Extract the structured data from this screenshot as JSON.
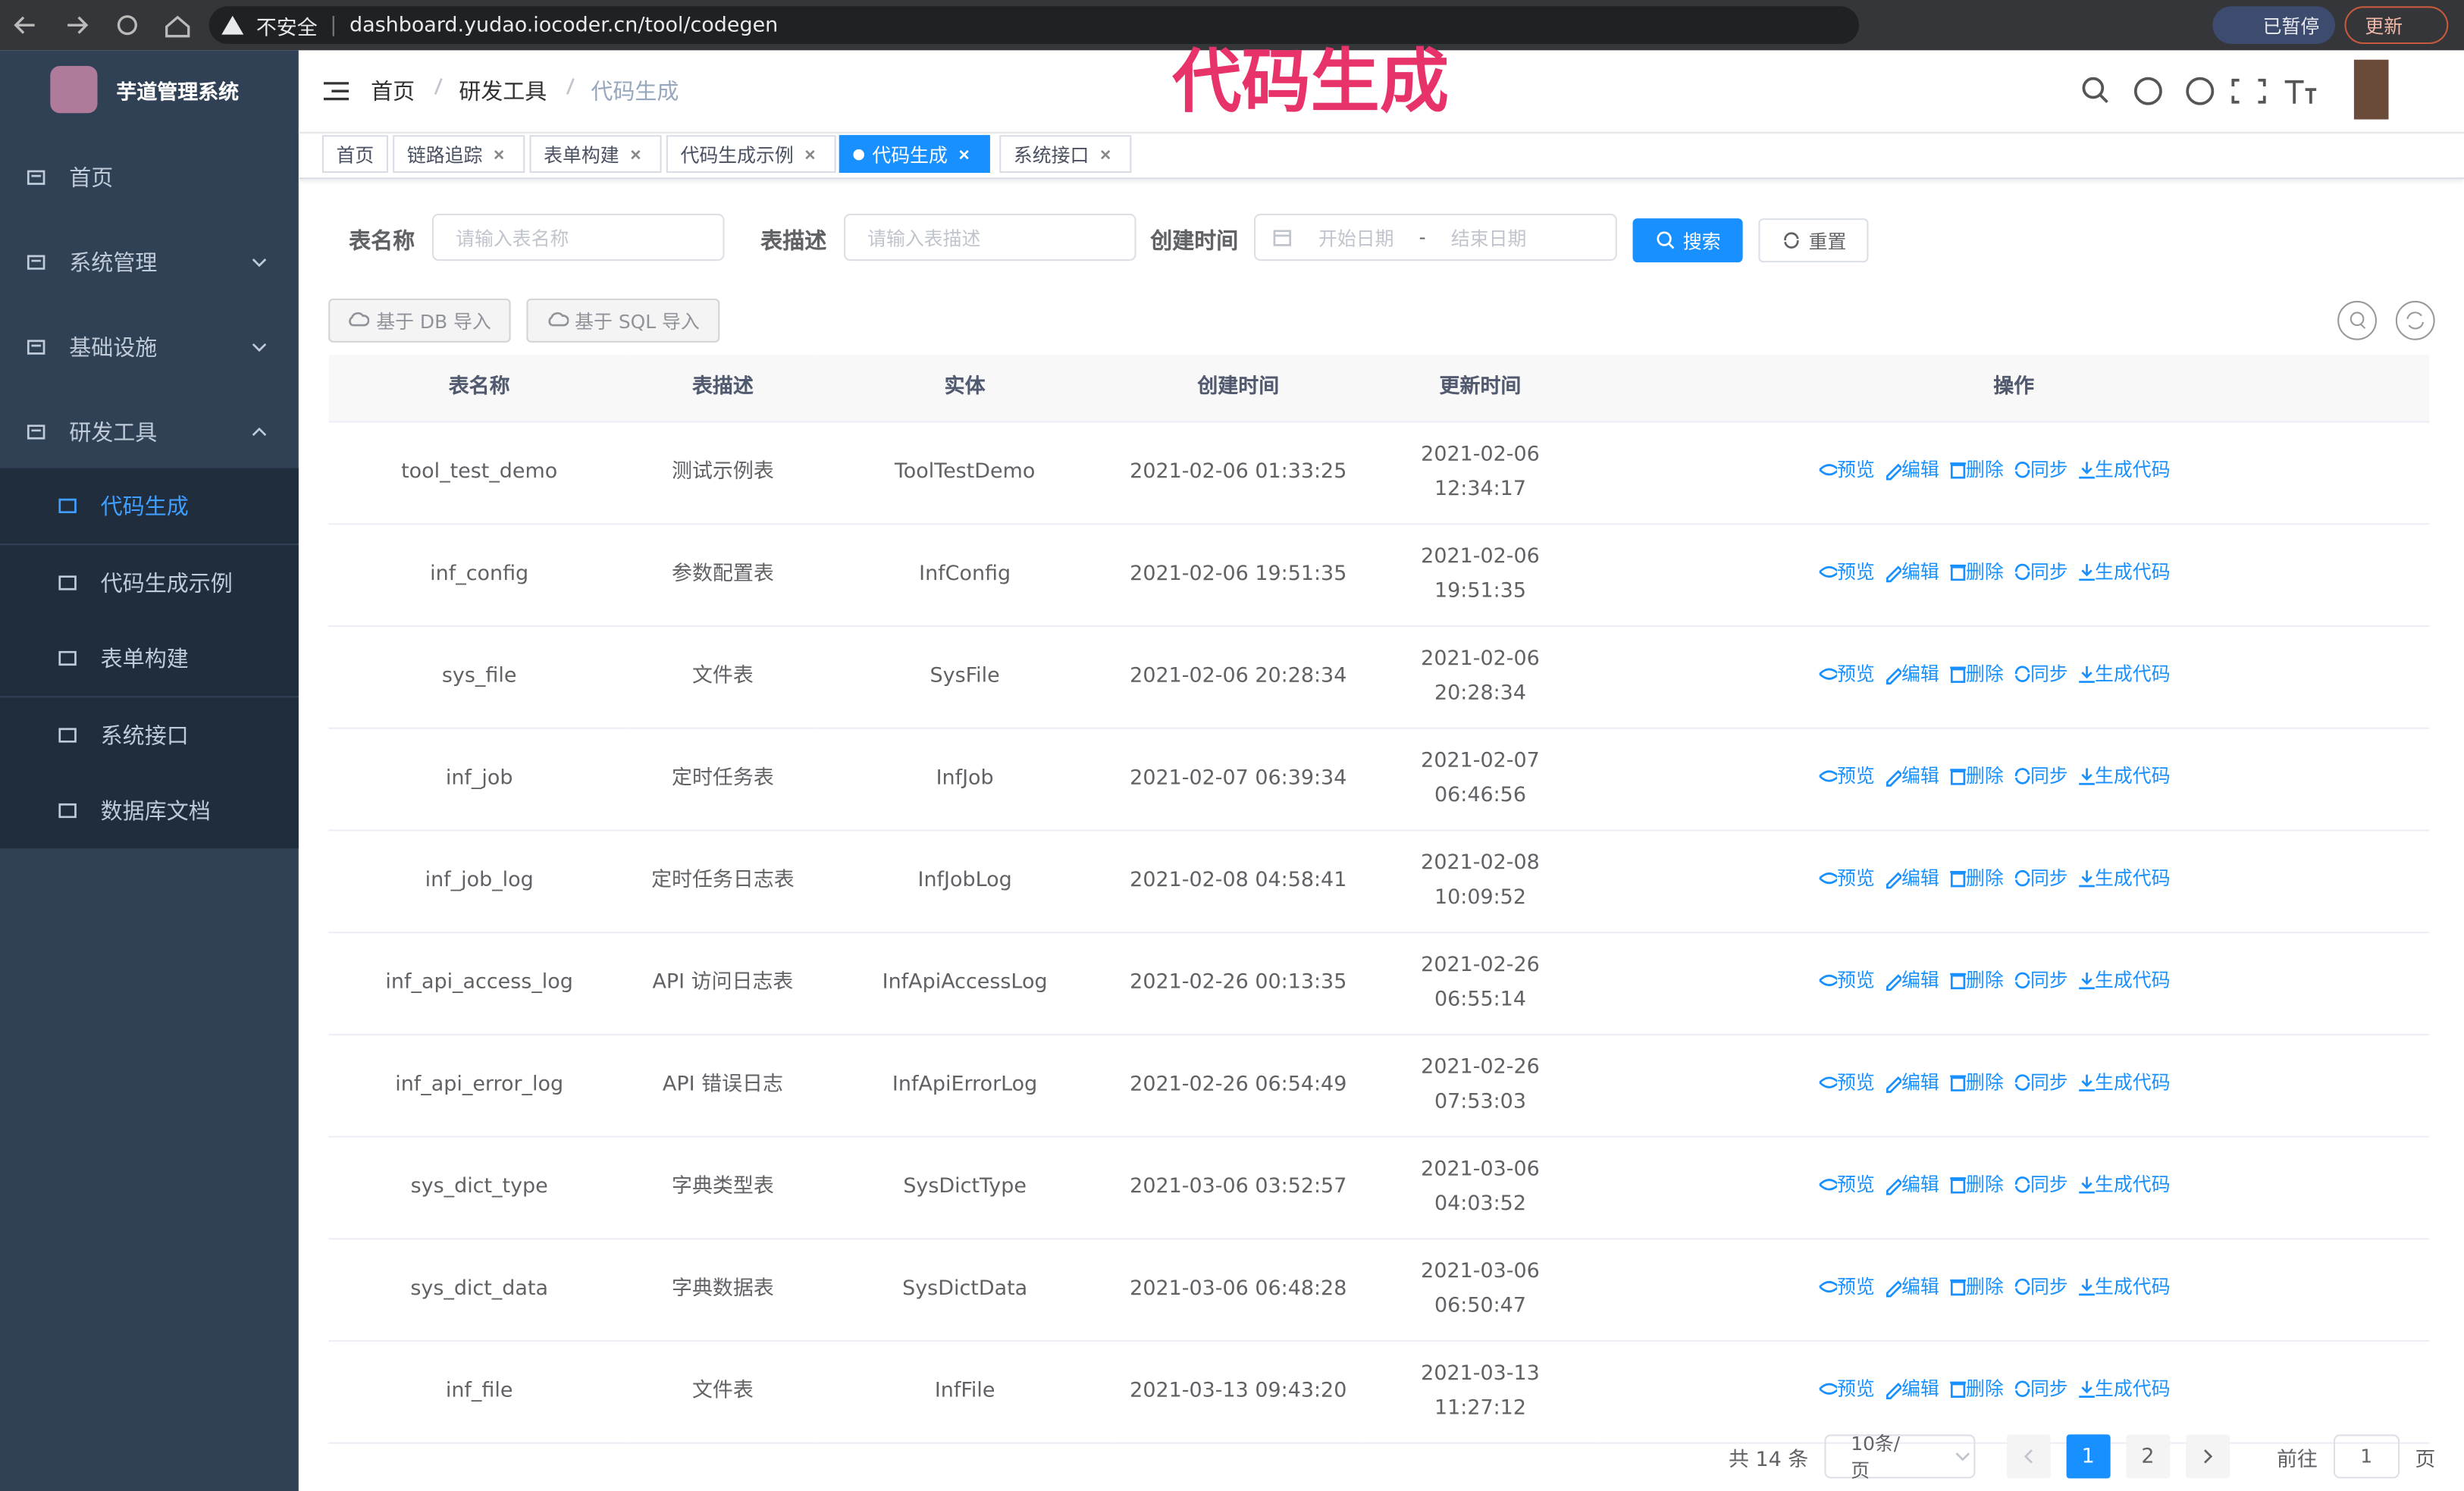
{
  "browser": {
    "security": "不安全",
    "url": "dashboard.yudao.iocoder.cn/tool/codegen",
    "profile": "已暂停",
    "update": "更新"
  },
  "overlay_title": "代码生成",
  "sidebar": {
    "title": "芋道管理系统",
    "menu": [
      "首页",
      "系统管理",
      "基础设施",
      "研发工具"
    ],
    "submenu": [
      "代码生成",
      "代码生成示例",
      "表单构建",
      "系统接口",
      "数据库文档"
    ]
  },
  "header": {
    "breadcrumb": [
      "首页",
      "研发工具",
      "代码生成"
    ]
  },
  "tags": [
    "首页",
    "链路追踪",
    "表单构建",
    "代码生成示例",
    "代码生成",
    "系统接口"
  ],
  "search": {
    "fields": [
      {
        "label": "表名称",
        "placeholder": "请输入表名称"
      },
      {
        "label": "表描述",
        "placeholder": "请输入表描述"
      }
    ],
    "date_label": "创建时间",
    "start": "开始日期",
    "sep": "-",
    "end": "结束日期",
    "search": "搜索",
    "reset": "重置"
  },
  "toolbar": [
    "基于 DB 导入",
    "基于 SQL 导入"
  ],
  "table": {
    "columns": [
      "表名称",
      "表描述",
      "实体",
      "创建时间",
      "更新时间",
      "操作"
    ],
    "rows": [
      [
        "tool_test_demo",
        "测试示例表",
        "ToolTestDemo",
        "2021-02-06 01:33:25",
        "2021-02-06 12:34:17"
      ],
      [
        "inf_config",
        "参数配置表",
        "InfConfig",
        "2021-02-06 19:51:35",
        "2021-02-06 19:51:35"
      ],
      [
        "sys_file",
        "文件表",
        "SysFile",
        "2021-02-06 20:28:34",
        "2021-02-06 20:28:34"
      ],
      [
        "inf_job",
        "定时任务表",
        "InfJob",
        "2021-02-07 06:39:34",
        "2021-02-07 06:46:56"
      ],
      [
        "inf_job_log",
        "定时任务日志表",
        "InfJobLog",
        "2021-02-08 04:58:41",
        "2021-02-08 10:09:52"
      ],
      [
        "inf_api_access_log",
        "API 访问日志表",
        "InfApiAccessLog",
        "2021-02-26 00:13:35",
        "2021-02-26 06:55:14"
      ],
      [
        "inf_api_error_log",
        "API 错误日志",
        "InfApiErrorLog",
        "2021-02-26 06:54:49",
        "2021-02-26 07:53:03"
      ],
      [
        "sys_dict_type",
        "字典类型表",
        "SysDictType",
        "2021-03-06 03:52:57",
        "2021-03-06 04:03:52"
      ],
      [
        "sys_dict_data",
        "字典数据表",
        "SysDictData",
        "2021-03-06 06:48:28",
        "2021-03-06 06:50:47"
      ],
      [
        "inf_file",
        "文件表",
        "InfFile",
        "2021-03-13 09:43:20",
        "2021-03-13 11:27:12"
      ]
    ],
    "actions": [
      "预览",
      "编辑",
      "删除",
      "同步",
      "生成代码"
    ]
  },
  "pagination": {
    "total": "共 14 条",
    "page_size": "10条/页",
    "pages": [
      "1",
      "2"
    ],
    "goto": "前往",
    "goto_value": "1",
    "page_unit": "页"
  }
}
